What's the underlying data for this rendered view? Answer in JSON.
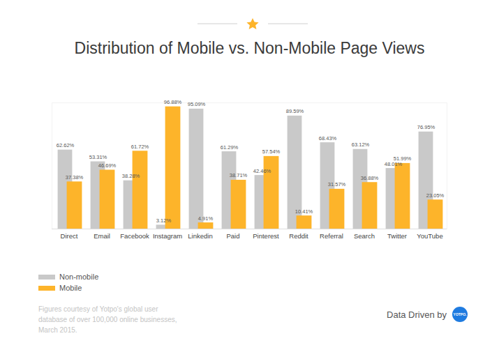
{
  "chart_data": {
    "type": "bar",
    "title": "Distribution of Mobile vs. Non-Mobile Page Views",
    "caption": "Figures courtesy of Yotpo's global user database of over 100,000 online businesses, March 2015.",
    "credit": "Data Driven by",
    "logo": "YOTPO.",
    "categories": [
      "Direct",
      "Email",
      "Facebook",
      "Instagram",
      "Linkedin",
      "Paid",
      "Pinterest",
      "Reddit",
      "Referral",
      "Search",
      "Twitter",
      "YouTube"
    ],
    "series": [
      {
        "name": "Non-mobile",
        "color": "#c9c9c9",
        "values": [
          62.62,
          53.31,
          38.28,
          3.12,
          95.09,
          61.29,
          42.46,
          89.59,
          68.43,
          63.12,
          48.01,
          76.95
        ],
        "value_labels": [
          "62.62%",
          "53.31%",
          "38.28%",
          "3.12%",
          "95.09%",
          "61.29%",
          "42.46%",
          "89.59%",
          "68.43%",
          "63.12%",
          "48.01%",
          "76.95%"
        ]
      },
      {
        "name": "Mobile",
        "color": "#fdb42a",
        "values": [
          37.38,
          46.69,
          61.72,
          96.88,
          4.91,
          38.71,
          57.54,
          10.41,
          31.57,
          36.88,
          51.99,
          23.05
        ],
        "value_labels": [
          "37.38%",
          "46.69%",
          "61.72%",
          "96.88%",
          "4.91%",
          "38.71%",
          "57.54%",
          "10.41%",
          "31.57%",
          "36.88%",
          "51.99%",
          "23.05%"
        ]
      }
    ],
    "ylim": [
      0,
      100
    ],
    "grid": false,
    "data_labels": true,
    "tick_labels": "x",
    "legend": "bottom"
  }
}
